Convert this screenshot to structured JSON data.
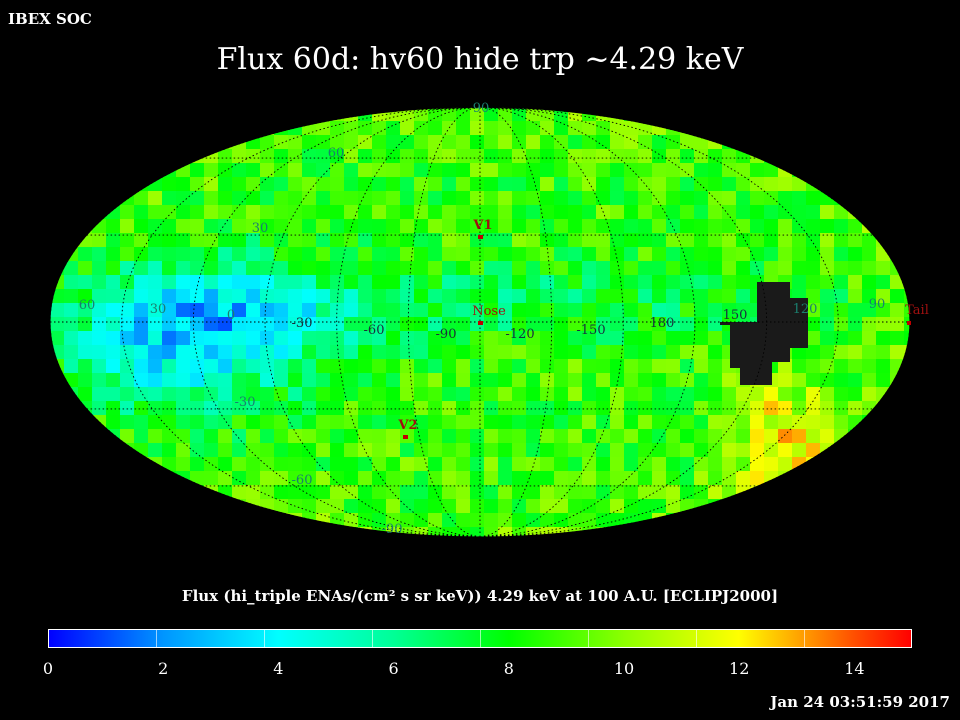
{
  "header": {
    "org": "IBEX SOC",
    "title": "Flux   60d: hv60 hide trp ~4.29 keV"
  },
  "map": {
    "projection": "Mollweide (ECLIPJ2000)",
    "latitude_labels": [
      "90",
      "60",
      "30",
      "-30",
      "-60",
      "-90"
    ],
    "longitude_labels": [
      "60",
      "30",
      "0",
      "-30",
      "-60",
      "-90",
      "-120",
      "-150",
      "180",
      "150",
      "120",
      "90"
    ],
    "markers": [
      {
        "name": "V1",
        "color": "#c00000"
      },
      {
        "name": "Nose",
        "color": "#c00000"
      },
      {
        "name": "V2",
        "color": "#c00000"
      },
      {
        "name": "Tail",
        "color": "#c00000"
      }
    ],
    "masked_color": "#1a1a1a"
  },
  "colorbar": {
    "title": "Flux (hi_triple ENAs/(cm² s sr keV))  4.29 keV at 100 A.U. [ECLIPJ2000]",
    "min": 0,
    "max": 15,
    "ticks": [
      "0",
      "2",
      "4",
      "6",
      "8",
      "10",
      "12",
      "14"
    ],
    "tick_values": [
      0,
      2,
      4,
      6,
      8,
      10,
      12,
      14
    ]
  },
  "footer": {
    "timestamp": "Jan 24 03:51:59 2017"
  }
}
